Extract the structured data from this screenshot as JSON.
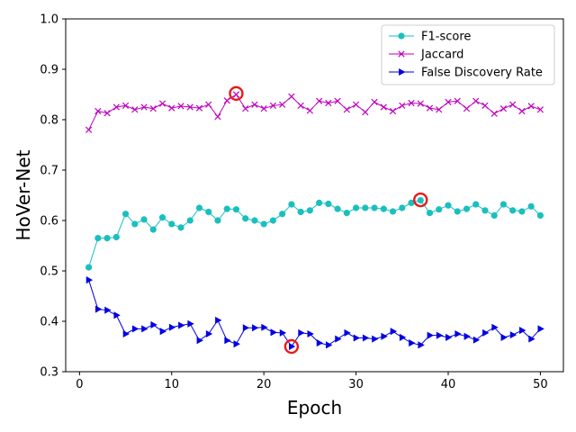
{
  "chart_data": {
    "type": "line",
    "xlabel": "Epoch",
    "ylabel": "HoVer-Net",
    "xlim": [
      -1.5,
      52.5
    ],
    "ylim": [
      0.3,
      1.0
    ],
    "x_ticks": [
      0,
      10,
      20,
      30,
      40,
      50
    ],
    "y_ticks": [
      0.3,
      0.4,
      0.5,
      0.6,
      0.7,
      0.8,
      0.9,
      1.0
    ],
    "x_tick_labels": [
      "0",
      "10",
      "20",
      "30",
      "40",
      "50"
    ],
    "y_tick_labels": [
      "0.3",
      "0.4",
      "0.5",
      "0.6",
      "0.7",
      "0.8",
      "0.9",
      "1.0"
    ],
    "grid": false,
    "legend_position": "top-right",
    "x": [
      1,
      2,
      3,
      4,
      5,
      6,
      7,
      8,
      9,
      10,
      11,
      12,
      13,
      14,
      15,
      16,
      17,
      18,
      19,
      20,
      21,
      22,
      23,
      24,
      25,
      26,
      27,
      28,
      29,
      30,
      31,
      32,
      33,
      34,
      35,
      36,
      37,
      38,
      39,
      40,
      41,
      42,
      43,
      44,
      45,
      46,
      47,
      48,
      49,
      50
    ],
    "series": [
      {
        "name": "F1-score",
        "color": "#1abfbf",
        "marker": "circle",
        "values": [
          0.507,
          0.565,
          0.565,
          0.567,
          0.613,
          0.593,
          0.602,
          0.582,
          0.606,
          0.593,
          0.586,
          0.6,
          0.625,
          0.617,
          0.6,
          0.623,
          0.622,
          0.604,
          0.6,
          0.593,
          0.6,
          0.613,
          0.632,
          0.617,
          0.62,
          0.635,
          0.633,
          0.623,
          0.615,
          0.625,
          0.625,
          0.625,
          0.623,
          0.618,
          0.625,
          0.635,
          0.64,
          0.615,
          0.622,
          0.63,
          0.618,
          0.623,
          0.632,
          0.62,
          0.61,
          0.632,
          0.62,
          0.618,
          0.628,
          0.61
        ]
      },
      {
        "name": "Jaccard",
        "color": "#bf00bf",
        "marker": "x",
        "values": [
          0.78,
          0.817,
          0.813,
          0.825,
          0.828,
          0.82,
          0.825,
          0.822,
          0.832,
          0.823,
          0.827,
          0.825,
          0.823,
          0.83,
          0.806,
          0.838,
          0.85,
          0.822,
          0.83,
          0.822,
          0.828,
          0.83,
          0.846,
          0.828,
          0.818,
          0.837,
          0.833,
          0.837,
          0.82,
          0.83,
          0.815,
          0.835,
          0.825,
          0.817,
          0.828,
          0.833,
          0.832,
          0.823,
          0.82,
          0.835,
          0.837,
          0.822,
          0.837,
          0.828,
          0.812,
          0.822,
          0.83,
          0.817,
          0.827,
          0.82
        ]
      },
      {
        "name": "False Discovery Rate",
        "color": "#0000e0",
        "marker": "triangle-right",
        "values": [
          0.482,
          0.424,
          0.422,
          0.412,
          0.375,
          0.385,
          0.385,
          0.393,
          0.38,
          0.388,
          0.392,
          0.395,
          0.362,
          0.375,
          0.402,
          0.362,
          0.355,
          0.387,
          0.387,
          0.388,
          0.378,
          0.377,
          0.35,
          0.377,
          0.375,
          0.357,
          0.353,
          0.365,
          0.377,
          0.367,
          0.367,
          0.365,
          0.37,
          0.38,
          0.368,
          0.357,
          0.353,
          0.372,
          0.372,
          0.368,
          0.375,
          0.37,
          0.363,
          0.377,
          0.388,
          0.368,
          0.373,
          0.382,
          0.365,
          0.385
        ]
      }
    ],
    "annotations": [
      {
        "type": "circle",
        "x": 17,
        "y": 0.852,
        "color": "#e81a1a"
      },
      {
        "type": "circle",
        "x": 37,
        "y": 0.641,
        "color": "#e81a1a"
      },
      {
        "type": "circle",
        "x": 23,
        "y": 0.35,
        "color": "#e81a1a"
      }
    ]
  }
}
